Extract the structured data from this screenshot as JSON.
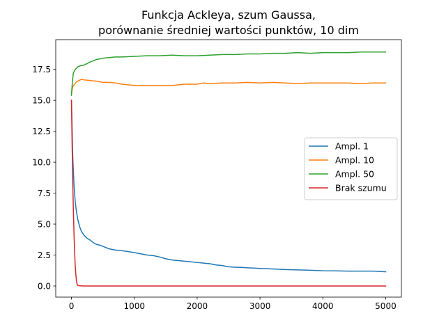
{
  "chart_data": {
    "type": "line",
    "title": [
      "Funkcja Ackleya, szum Gaussa,",
      "porównanie średniej wartości punktów, 10 dim"
    ],
    "xlabel": "",
    "ylabel": "",
    "xlim": [
      -250,
      5250
    ],
    "ylim": [
      -0.9,
      19.9
    ],
    "xticks": [
      0,
      1000,
      2000,
      3000,
      4000,
      5000
    ],
    "xtick_labels": [
      "0",
      "1000",
      "2000",
      "3000",
      "4000",
      "5000"
    ],
    "yticks": [
      0.0,
      2.5,
      5.0,
      7.5,
      10.0,
      12.5,
      15.0,
      17.5
    ],
    "ytick_labels": [
      "0.0",
      "2.5",
      "5.0",
      "7.5",
      "10.0",
      "12.5",
      "15.0",
      "17.5"
    ],
    "grid": false,
    "legend_position": "center-right",
    "series": [
      {
        "name": "Ampl. 1",
        "color": "#1f77b4",
        "x": [
          0,
          20,
          40,
          60,
          80,
          100,
          130,
          160,
          200,
          250,
          300,
          350,
          400,
          450,
          500,
          600,
          700,
          800,
          900,
          1000,
          1100,
          1200,
          1300,
          1400,
          1500,
          1600,
          1700,
          1800,
          1900,
          2000,
          2100,
          2200,
          2300,
          2400,
          2500,
          2600,
          2700,
          2800,
          2900,
          3000,
          3200,
          3400,
          3600,
          3800,
          4000,
          4200,
          4400,
          4600,
          4800,
          5000
        ],
        "y": [
          15.0,
          10.5,
          8.2,
          6.8,
          6.0,
          5.4,
          4.8,
          4.4,
          4.1,
          3.85,
          3.7,
          3.5,
          3.35,
          3.3,
          3.2,
          3.0,
          2.9,
          2.85,
          2.78,
          2.7,
          2.6,
          2.5,
          2.45,
          2.35,
          2.2,
          2.1,
          2.05,
          2.0,
          1.95,
          1.9,
          1.85,
          1.8,
          1.7,
          1.65,
          1.55,
          1.52,
          1.5,
          1.47,
          1.45,
          1.42,
          1.38,
          1.33,
          1.3,
          1.27,
          1.23,
          1.22,
          1.2,
          1.2,
          1.2,
          1.15
        ]
      },
      {
        "name": "Ampl. 10",
        "color": "#ff7f0e",
        "x": [
          0,
          20,
          50,
          80,
          120,
          160,
          200,
          300,
          400,
          500,
          600,
          700,
          800,
          900,
          1000,
          1200,
          1400,
          1600,
          1800,
          2000,
          2100,
          2200,
          2400,
          2600,
          2800,
          3000,
          3200,
          3400,
          3600,
          3800,
          4000,
          4200,
          4400,
          4600,
          4800,
          5000
        ],
        "y": [
          15.6,
          16.1,
          16.3,
          16.5,
          16.6,
          16.7,
          16.65,
          16.6,
          16.55,
          16.45,
          16.45,
          16.4,
          16.3,
          16.25,
          16.2,
          16.2,
          16.2,
          16.2,
          16.3,
          16.3,
          16.4,
          16.35,
          16.4,
          16.4,
          16.45,
          16.4,
          16.45,
          16.4,
          16.35,
          16.4,
          16.4,
          16.4,
          16.4,
          16.35,
          16.4,
          16.4
        ]
      },
      {
        "name": "Ampl. 50",
        "color": "#2ca02c",
        "x": [
          0,
          15,
          30,
          60,
          100,
          150,
          200,
          300,
          400,
          500,
          600,
          700,
          800,
          1000,
          1200,
          1400,
          1600,
          1800,
          2000,
          2200,
          2400,
          2600,
          2800,
          3000,
          3200,
          3400,
          3600,
          3800,
          4000,
          4200,
          4400,
          4600,
          4800,
          5000
        ],
        "y": [
          15.4,
          16.5,
          17.2,
          17.5,
          17.7,
          17.8,
          17.85,
          18.1,
          18.3,
          18.4,
          18.45,
          18.5,
          18.5,
          18.55,
          18.6,
          18.6,
          18.65,
          18.6,
          18.6,
          18.65,
          18.7,
          18.7,
          18.75,
          18.75,
          18.8,
          18.8,
          18.85,
          18.8,
          18.85,
          18.85,
          18.85,
          18.9,
          18.9,
          18.9
        ]
      },
      {
        "name": "Brak szumu",
        "color": "#d62728",
        "x": [
          0,
          10,
          20,
          30,
          40,
          50,
          60,
          70,
          80,
          90,
          100,
          120,
          150,
          200,
          300,
          500,
          1000,
          2000,
          3000,
          4000,
          5000
        ],
        "y": [
          15.0,
          11.5,
          8.5,
          6.2,
          4.3,
          2.8,
          1.6,
          0.9,
          0.4,
          0.15,
          0.05,
          0.02,
          0.01,
          0.0,
          0.0,
          0.0,
          0.0,
          0.0,
          0.0,
          0.0,
          0.0
        ]
      }
    ]
  }
}
